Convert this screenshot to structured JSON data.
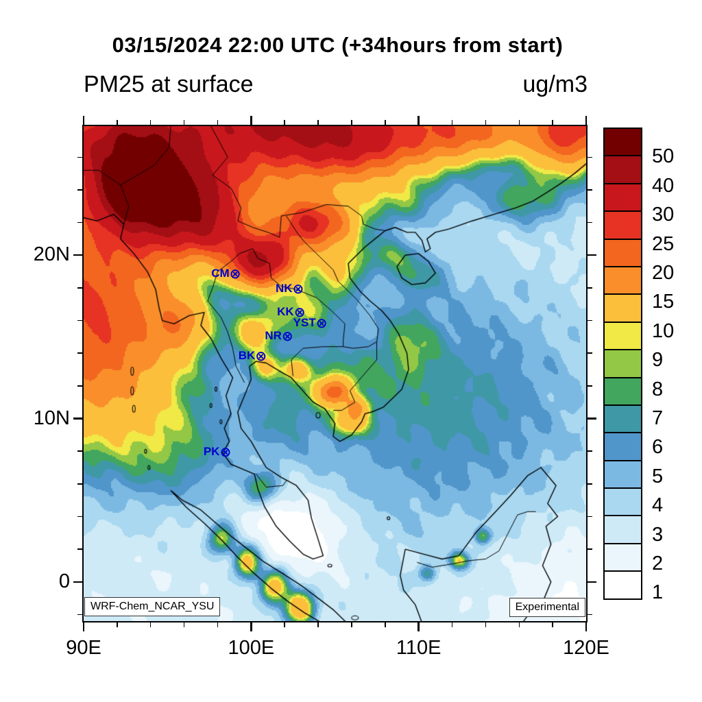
{
  "header": {
    "title": "03/15/2024 22:00 UTC (+34hours from start)",
    "field_label": "PM25 at surface",
    "units_label": "ug/m3"
  },
  "map": {
    "lon_min": 90,
    "lon_max": 120,
    "lat_min": -2.4,
    "lat_max": 27.9,
    "minor_tick_step_deg": 2,
    "x_tick_labels": [
      {
        "lon": 90,
        "label": "90E"
      },
      {
        "lon": 100,
        "label": "100E"
      },
      {
        "lon": 110,
        "label": "110E"
      },
      {
        "lon": 120,
        "label": "120E"
      }
    ],
    "y_tick_labels": [
      {
        "lat": 20,
        "label": "20N"
      },
      {
        "lat": 10,
        "label": "10N"
      },
      {
        "lat": 0,
        "label": "0"
      }
    ],
    "marker_symbol": "⊗",
    "station_color": "#0000cc",
    "stations": [
      {
        "id": "CM",
        "lon": 98.98,
        "lat": 18.79
      },
      {
        "id": "NK",
        "lon": 102.74,
        "lat": 17.87
      },
      {
        "id": "KK",
        "lon": 102.83,
        "lat": 16.43
      },
      {
        "id": "YST",
        "lon": 104.14,
        "lat": 15.79
      },
      {
        "id": "NR",
        "lon": 102.1,
        "lat": 14.97
      },
      {
        "id": "BK",
        "lon": 100.52,
        "lat": 13.75
      },
      {
        "id": "PK",
        "lon": 98.4,
        "lat": 7.9
      }
    ],
    "badge_left": "WRF-Chem_NCAR_YSU",
    "badge_right": "Experimental"
  },
  "colorbar": {
    "boundary_labels": [
      "50",
      "40",
      "30",
      "25",
      "20",
      "15",
      "10",
      "9",
      "8",
      "7",
      "6",
      "5",
      "4",
      "3",
      "2",
      "1"
    ],
    "colors_top_to_bottom": [
      "#730000",
      "#a30f15",
      "#c9181d",
      "#e63323",
      "#f2661f",
      "#f98e2b",
      "#fbbf3c",
      "#f0e946",
      "#92c846",
      "#42a65e",
      "#3f98a6",
      "#5096ca",
      "#7cb9e2",
      "#a9d8f0",
      "#cfeaf7",
      "#eaf6fc",
      "#ffffff"
    ]
  },
  "chart_data": {
    "type": "heatmap",
    "title": "PM25 at surface",
    "units": "ug/m3",
    "valid_time_utc": "03/15/2024 22:00",
    "forecast_offset": "+34hours from start",
    "source_model": "WRF-Chem_NCAR_YSU",
    "status": "Experimental",
    "x_axis": {
      "label": "longitude",
      "range": [
        90,
        120
      ],
      "ticks": [
        90,
        100,
        110,
        120
      ]
    },
    "y_axis": {
      "label": "latitude",
      "range": [
        -2.4,
        27.9
      ],
      "ticks": [
        0,
        10,
        20
      ]
    },
    "contour_levels": [
      1,
      2,
      3,
      4,
      5,
      6,
      7,
      8,
      9,
      10,
      15,
      20,
      25,
      30,
      40,
      50
    ],
    "palette_low_to_high": [
      "#ffffff",
      "#eaf6fc",
      "#cfeaf7",
      "#a9d8f0",
      "#7cb9e2",
      "#5096ca",
      "#3f98a6",
      "#42a65e",
      "#92c846",
      "#f0e946",
      "#fbbf3c",
      "#f98e2b",
      "#f2661f",
      "#e63323",
      "#c9181d",
      "#a30f15",
      "#730000"
    ],
    "base_value": 2.2,
    "field_model_gaussians": [
      [
        90.5,
        16.5,
        5.2,
        7.0,
        24
      ],
      [
        99.0,
        27.0,
        9.0,
        3.6,
        20
      ],
      [
        100.5,
        28.2,
        5.5,
        1.6,
        16
      ],
      [
        95.3,
        23.2,
        3.6,
        2.7,
        45
      ],
      [
        92.8,
        24.0,
        2.4,
        2.0,
        28
      ],
      [
        92.5,
        26.8,
        3.5,
        2.2,
        30
      ],
      [
        100.6,
        19.7,
        1.9,
        1.45,
        38
      ],
      [
        98.0,
        21.5,
        1.8,
        1.5,
        14
      ],
      [
        103.6,
        21.9,
        2.3,
        1.5,
        26
      ],
      [
        106.0,
        27.3,
        4.6,
        2.3,
        24
      ],
      [
        113.0,
        27.8,
        3.5,
        1.8,
        18
      ],
      [
        119.0,
        27.6,
        2.4,
        2.2,
        26
      ],
      [
        108.8,
        23.3,
        2.2,
        1.4,
        3
      ],
      [
        116.5,
        23.5,
        2.6,
        1.5,
        5
      ],
      [
        111.0,
        11.0,
        9.5,
        8.0,
        4.2
      ],
      [
        95.5,
        8.0,
        3.5,
        3.2,
        3.5
      ],
      [
        102.8,
        3.2,
        3.0,
        2.5,
        -3.0
      ],
      [
        119.5,
        -0.5,
        5.5,
        4.5,
        -1.4
      ],
      [
        101.8,
        10.3,
        1.9,
        2.3,
        2.6
      ],
      [
        105.2,
        12.3,
        2.4,
        1.7,
        3.2
      ],
      [
        103.0,
        16.8,
        2.2,
        1.7,
        5.5
      ],
      [
        105.3,
        19.3,
        1.5,
        1.5,
        7
      ],
      [
        104.9,
        11.6,
        0.9,
        0.75,
        16
      ],
      [
        106.3,
        10.7,
        0.7,
        0.6,
        8
      ],
      [
        102.7,
        13.0,
        0.8,
        0.7,
        7
      ],
      [
        100.2,
        15.3,
        1.3,
        1.2,
        8
      ],
      [
        95.8,
        15.8,
        1.6,
        1.6,
        9
      ],
      [
        98.2,
        2.6,
        0.75,
        0.9,
        7
      ],
      [
        99.8,
        1.2,
        0.8,
        1.0,
        9
      ],
      [
        101.4,
        -0.3,
        0.8,
        1.0,
        10
      ],
      [
        102.9,
        -1.6,
        0.9,
        1.0,
        11
      ],
      [
        112.4,
        1.3,
        0.55,
        0.5,
        7
      ],
      [
        113.8,
        2.8,
        0.45,
        0.45,
        5
      ],
      [
        110.5,
        0.5,
        0.5,
        0.5,
        4
      ],
      [
        108.3,
        20.0,
        1.3,
        1.0,
        4
      ],
      [
        110.0,
        18.8,
        1.6,
        1.2,
        3
      ],
      [
        109.5,
        14.5,
        1.5,
        2.0,
        3
      ],
      [
        105.9,
        9.8,
        1.0,
        0.8,
        8
      ],
      [
        100.8,
        13.2,
        1.0,
        0.9,
        6
      ],
      [
        100.6,
        5.8,
        0.9,
        0.9,
        5
      ]
    ]
  },
  "geo": {
    "coastlines": [
      [
        [
          90.0,
          22.3
        ],
        [
          90.8,
          22.1
        ],
        [
          91.8,
          22.5
        ],
        [
          92.4,
          21.9
        ],
        [
          92.2,
          21.0
        ],
        [
          93.0,
          20.1
        ],
        [
          93.8,
          19.0
        ],
        [
          94.3,
          17.9
        ],
        [
          94.5,
          16.8
        ],
        [
          94.7,
          16.0
        ],
        [
          95.4,
          15.8
        ],
        [
          96.3,
          16.3
        ],
        [
          97.2,
          16.5
        ],
        [
          97.0,
          15.7
        ],
        [
          97.6,
          14.9
        ],
        [
          98.2,
          13.7
        ],
        [
          98.9,
          12.5
        ],
        [
          98.5,
          11.4
        ],
        [
          98.8,
          10.3
        ],
        [
          98.4,
          9.4
        ],
        [
          98.7,
          8.6
        ],
        [
          98.3,
          7.9
        ],
        [
          98.8,
          7.2
        ],
        [
          99.5,
          6.9
        ],
        [
          100.2,
          6.6
        ],
        [
          100.4,
          5.7
        ],
        [
          100.8,
          4.6
        ],
        [
          101.5,
          3.4
        ],
        [
          102.3,
          2.5
        ],
        [
          103.1,
          1.7
        ],
        [
          103.7,
          1.4
        ],
        [
          104.3,
          1.6
        ],
        [
          104.0,
          2.6
        ],
        [
          103.6,
          3.9
        ],
        [
          103.4,
          5.0
        ],
        [
          102.7,
          5.9
        ],
        [
          101.8,
          6.4
        ],
        [
          100.9,
          7.0
        ],
        [
          100.5,
          7.7
        ],
        [
          100.0,
          8.6
        ],
        [
          99.4,
          9.4
        ],
        [
          99.2,
          10.4
        ],
        [
          99.6,
          11.4
        ],
        [
          100.0,
          12.4
        ],
        [
          99.9,
          13.2
        ],
        [
          100.3,
          13.5
        ],
        [
          100.9,
          13.4
        ],
        [
          101.7,
          12.9
        ],
        [
          102.4,
          12.5
        ],
        [
          103.0,
          11.8
        ],
        [
          103.7,
          11.0
        ],
        [
          104.4,
          10.6
        ],
        [
          105.0,
          9.7
        ],
        [
          104.9,
          8.9
        ],
        [
          105.3,
          8.6
        ],
        [
          106.0,
          9.0
        ],
        [
          106.6,
          9.8
        ],
        [
          106.8,
          10.3
        ],
        [
          107.2,
          10.4
        ],
        [
          107.9,
          10.7
        ],
        [
          108.4,
          11.2
        ],
        [
          109.0,
          11.8
        ],
        [
          109.4,
          13.0
        ],
        [
          109.3,
          14.0
        ],
        [
          108.8,
          15.2
        ],
        [
          108.3,
          16.0
        ],
        [
          107.8,
          16.6
        ],
        [
          107.1,
          17.2
        ],
        [
          106.5,
          17.8
        ],
        [
          105.9,
          18.6
        ],
        [
          105.8,
          19.5
        ],
        [
          106.3,
          20.0
        ],
        [
          106.8,
          20.5
        ],
        [
          107.4,
          21.0
        ],
        [
          108.0,
          21.5
        ],
        [
          108.6,
          21.7
        ],
        [
          109.3,
          21.4
        ],
        [
          109.8,
          21.4
        ],
        [
          110.2,
          20.9
        ],
        [
          110.4,
          20.2
        ],
        [
          110.7,
          20.4
        ],
        [
          110.5,
          21.0
        ],
        [
          111.0,
          21.4
        ],
        [
          111.8,
          21.6
        ],
        [
          113.2,
          22.1
        ],
        [
          114.5,
          22.5
        ],
        [
          115.8,
          22.9
        ],
        [
          116.8,
          23.3
        ],
        [
          117.6,
          23.8
        ],
        [
          118.5,
          24.4
        ],
        [
          119.3,
          25.0
        ],
        [
          120.0,
          25.6
        ]
      ],
      [
        [
          108.7,
          19.3
        ],
        [
          109.2,
          20.0
        ],
        [
          110.0,
          20.1
        ],
        [
          110.6,
          19.6
        ],
        [
          111.0,
          18.9
        ],
        [
          110.4,
          18.3
        ],
        [
          109.6,
          18.2
        ],
        [
          109.0,
          18.6
        ],
        [
          108.7,
          19.3
        ]
      ],
      [
        [
          95.2,
          5.6
        ],
        [
          95.9,
          5.0
        ],
        [
          97.0,
          4.4
        ],
        [
          97.9,
          3.6
        ],
        [
          98.8,
          2.8
        ],
        [
          99.8,
          2.0
        ],
        [
          100.8,
          1.2
        ],
        [
          101.9,
          0.5
        ],
        [
          103.1,
          -0.3
        ],
        [
          104.0,
          -1.0
        ],
        [
          104.9,
          -1.7
        ],
        [
          105.7,
          -2.5
        ],
        [
          104.2,
          -2.5
        ],
        [
          103.2,
          -1.9
        ],
        [
          102.2,
          -1.2
        ],
        [
          101.2,
          -0.4
        ],
        [
          100.2,
          0.5
        ],
        [
          99.2,
          1.5
        ],
        [
          98.3,
          2.5
        ],
        [
          97.3,
          3.5
        ],
        [
          96.1,
          4.6
        ],
        [
          95.2,
          5.6
        ]
      ],
      [
        [
          109.2,
          2.0
        ],
        [
          110.3,
          1.7
        ],
        [
          111.4,
          1.4
        ],
        [
          112.4,
          1.6
        ],
        [
          113.4,
          3.0
        ],
        [
          114.6,
          4.3
        ],
        [
          115.5,
          5.3
        ],
        [
          116.5,
          6.5
        ],
        [
          117.3,
          7.0
        ],
        [
          118.2,
          5.9
        ],
        [
          117.7,
          4.8
        ],
        [
          118.3,
          4.0
        ],
        [
          117.6,
          3.4
        ],
        [
          117.9,
          2.3
        ],
        [
          117.4,
          1.0
        ],
        [
          117.9,
          0.0
        ],
        [
          117.5,
          -1.0
        ],
        [
          116.7,
          -1.8
        ],
        [
          116.2,
          -2.5
        ],
        [
          110.2,
          -2.5
        ],
        [
          109.8,
          -1.4
        ],
        [
          109.1,
          -0.5
        ],
        [
          108.9,
          0.4
        ],
        [
          109.2,
          2.0
        ]
      ]
    ],
    "borders": [
      [
        [
          97.6,
          27.9
        ],
        [
          98.6,
          26.0
        ],
        [
          97.7,
          24.9
        ],
        [
          98.8,
          24.1
        ],
        [
          99.4,
          22.9
        ],
        [
          99.2,
          22.1
        ],
        [
          100.1,
          21.7
        ],
        [
          101.0,
          21.4
        ],
        [
          101.7,
          21.1
        ],
        [
          101.8,
          22.4
        ],
        [
          103.0,
          22.6
        ],
        [
          104.5,
          23.1
        ],
        [
          105.8,
          23.0
        ],
        [
          106.6,
          22.4
        ],
        [
          106.7,
          21.9
        ],
        [
          107.4,
          21.6
        ],
        [
          108.0,
          21.5
        ]
      ],
      [
        [
          92.4,
          21.9
        ],
        [
          92.7,
          23.0
        ],
        [
          92.2,
          24.3
        ],
        [
          93.4,
          25.0
        ],
        [
          94.2,
          25.5
        ],
        [
          95.1,
          26.6
        ],
        [
          95.2,
          27.9
        ]
      ],
      [
        [
          92.2,
          24.3
        ],
        [
          90.9,
          25.2
        ],
        [
          90.0,
          25.2
        ]
      ],
      [
        [
          100.1,
          20.4
        ],
        [
          99.3,
          20.1
        ],
        [
          98.9,
          19.7
        ],
        [
          98.0,
          19.0
        ],
        [
          97.7,
          18.0
        ],
        [
          97.4,
          17.2
        ],
        [
          98.2,
          16.2
        ],
        [
          98.6,
          15.3
        ],
        [
          98.9,
          14.3
        ],
        [
          99.1,
          13.2
        ],
        [
          99.6,
          12.2
        ]
      ],
      [
        [
          100.1,
          20.4
        ],
        [
          100.4,
          19.8
        ],
        [
          101.1,
          19.5
        ],
        [
          101.2,
          18.6
        ],
        [
          101.8,
          18.1
        ],
        [
          102.7,
          17.9
        ],
        [
          103.9,
          17.4
        ],
        [
          104.8,
          16.6
        ],
        [
          105.6,
          15.8
        ],
        [
          105.5,
          14.8
        ],
        [
          105.5,
          14.4
        ]
      ],
      [
        [
          102.1,
          22.4
        ],
        [
          102.8,
          21.3
        ],
        [
          103.2,
          20.8
        ],
        [
          104.1,
          19.9
        ],
        [
          104.9,
          19.1
        ],
        [
          105.2,
          18.4
        ],
        [
          106.3,
          17.3
        ],
        [
          107.1,
          16.3
        ],
        [
          107.6,
          15.5
        ],
        [
          107.5,
          14.7
        ]
      ],
      [
        [
          102.4,
          13.6
        ],
        [
          103.1,
          14.3
        ],
        [
          104.3,
          14.4
        ],
        [
          105.5,
          14.4
        ],
        [
          106.1,
          14.3
        ],
        [
          107.0,
          14.4
        ],
        [
          107.5,
          14.7
        ]
      ],
      [
        [
          107.5,
          14.7
        ],
        [
          107.5,
          13.6
        ],
        [
          106.4,
          12.3
        ],
        [
          105.9,
          11.7
        ],
        [
          106.2,
          11.0
        ],
        [
          105.4,
          10.5
        ],
        [
          104.9,
          10.5
        ]
      ],
      [
        [
          102.4,
          13.6
        ],
        [
          102.5,
          12.6
        ]
      ],
      [
        [
          100.3,
          6.6
        ],
        [
          100.9,
          5.8
        ],
        [
          101.9,
          5.9
        ],
        [
          102.1,
          6.2
        ]
      ],
      [
        [
          109.9,
          1.2
        ],
        [
          110.8,
          0.9
        ],
        [
          112.0,
          1.1
        ],
        [
          113.0,
          1.3
        ],
        [
          114.0,
          1.4
        ],
        [
          114.8,
          1.9
        ],
        [
          115.3,
          2.9
        ],
        [
          115.9,
          4.1
        ],
        [
          116.5,
          4.3
        ],
        [
          117.0,
          4.3
        ]
      ]
    ],
    "islands": [
      [
        92.9,
        12.9,
        2,
        6
      ],
      [
        92.9,
        11.7,
        2,
        6
      ],
      [
        93.0,
        10.6,
        2,
        5
      ],
      [
        93.7,
        8.0,
        1.5,
        3
      ],
      [
        93.9,
        7.0,
        1.5,
        3
      ],
      [
        97.9,
        11.8,
        1.5,
        3
      ],
      [
        97.6,
        10.8,
        1.5,
        3
      ],
      [
        98.2,
        9.8,
        1.5,
        3
      ],
      [
        104.0,
        10.2,
        3,
        4
      ],
      [
        106.2,
        -2.2,
        5,
        3
      ],
      [
        108.2,
        3.9,
        2,
        2
      ],
      [
        104.7,
        1.0,
        3,
        2
      ]
    ]
  }
}
